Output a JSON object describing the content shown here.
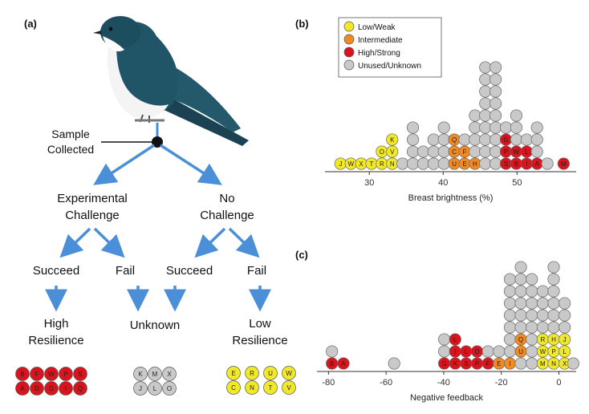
{
  "colors": {
    "low": "#f2e82a",
    "intermediate": "#f08a24",
    "high": "#d9141c",
    "unused": "#c9c9c9",
    "arrow": "#4a8fd8",
    "bird_back": "#1f5566",
    "bird_belly": "#f4f4f4"
  },
  "panel_a": {
    "label": "(a)",
    "sample_label_1": "Sample",
    "sample_label_2": "Collected",
    "experimental_1": "Experimental",
    "experimental_2": "Challenge",
    "no_challenge_1": "No",
    "no_challenge_2": "Challenge",
    "succeed_left": "Succeed",
    "fail_left": "Fail",
    "succeed_right": "Succeed",
    "fail_right": "Fail",
    "high_1": "High",
    "high_2": "Resilience",
    "unknown": "Unknown",
    "low_1": "Low",
    "low_2": "Resilience",
    "red_group": [
      [
        "B",
        "F",
        "W",
        "P",
        "S"
      ],
      [
        "A",
        "D",
        "G",
        "I",
        "Q"
      ]
    ],
    "grey_group": [
      [
        "K",
        "M",
        "X"
      ],
      [
        "J",
        "L",
        "O"
      ]
    ],
    "yellow_group": [
      [
        "E",
        "R",
        "U",
        "W"
      ],
      [
        "C",
        "N",
        "T",
        "V"
      ]
    ]
  },
  "legend": {
    "items": [
      {
        "label": "Low/Weak",
        "color_key": "low"
      },
      {
        "label": "Intermediate",
        "color_key": "intermediate"
      },
      {
        "label": "High/Strong",
        "color_key": "high"
      },
      {
        "label": "Unused/Unknown",
        "color_key": "unused"
      }
    ]
  },
  "chart_data": [
    {
      "panel": "(b)",
      "type": "scatter",
      "xlabel": "Breast brightness (%)",
      "xlim": [
        24,
        58
      ],
      "xticks": [
        30,
        40,
        50
      ],
      "ylabel": "",
      "grid": false,
      "note": "dot plot; each circle is one bird",
      "stacks": [
        {
          "x": 26.1,
          "dots": [
            {
              "c": "low",
              "t": "J"
            }
          ]
        },
        {
          "x": 27.5,
          "dots": [
            {
              "c": "low",
              "t": "W"
            }
          ]
        },
        {
          "x": 28.9,
          "dots": [
            {
              "c": "low",
              "t": "X"
            }
          ]
        },
        {
          "x": 30.3,
          "dots": [
            {
              "c": "low",
              "t": "T"
            }
          ]
        },
        {
          "x": 31.7,
          "dots": [
            {
              "c": "low",
              "t": "R"
            },
            {
              "c": "low",
              "t": "O"
            }
          ]
        },
        {
          "x": 33.1,
          "dots": [
            {
              "c": "low",
              "t": "N"
            },
            {
              "c": "low",
              "t": "V"
            },
            {
              "c": "low",
              "t": "K"
            }
          ]
        },
        {
          "x": 34.5,
          "dots": [
            {
              "c": "unused",
              "t": ""
            }
          ]
        },
        {
          "x": 35.9,
          "dots": [
            {
              "c": "unused",
              "t": ""
            },
            {
              "c": "unused",
              "t": ""
            },
            {
              "c": "unused",
              "t": ""
            },
            {
              "c": "unused",
              "t": ""
            }
          ]
        },
        {
          "x": 37.3,
          "dots": [
            {
              "c": "unused",
              "t": ""
            },
            {
              "c": "unused",
              "t": ""
            }
          ]
        },
        {
          "x": 38.7,
          "dots": [
            {
              "c": "unused",
              "t": ""
            },
            {
              "c": "unused",
              "t": ""
            },
            {
              "c": "unused",
              "t": ""
            }
          ]
        },
        {
          "x": 40.1,
          "dots": [
            {
              "c": "unused",
              "t": ""
            },
            {
              "c": "unused",
              "t": ""
            },
            {
              "c": "unused",
              "t": ""
            },
            {
              "c": "unused",
              "t": ""
            }
          ]
        },
        {
          "x": 41.5,
          "dots": [
            {
              "c": "intermediate",
              "t": "U"
            },
            {
              "c": "intermediate",
              "t": "C"
            },
            {
              "c": "intermediate",
              "t": "Q"
            }
          ]
        },
        {
          "x": 42.9,
          "dots": [
            {
              "c": "intermediate",
              "t": "E"
            },
            {
              "c": "intermediate",
              "t": "F"
            },
            {
              "c": "unused",
              "t": ""
            }
          ]
        },
        {
          "x": 44.3,
          "dots": [
            {
              "c": "intermediate",
              "t": "H"
            },
            {
              "c": "unused",
              "t": ""
            },
            {
              "c": "unused",
              "t": ""
            },
            {
              "c": "unused",
              "t": ""
            },
            {
              "c": "unused",
              "t": ""
            }
          ]
        },
        {
          "x": 45.7,
          "dots": [
            {
              "c": "unused",
              "t": ""
            },
            {
              "c": "unused",
              "t": ""
            },
            {
              "c": "unused",
              "t": ""
            },
            {
              "c": "unused",
              "t": ""
            },
            {
              "c": "unused",
              "t": ""
            },
            {
              "c": "unused",
              "t": ""
            },
            {
              "c": "unused",
              "t": ""
            },
            {
              "c": "unused",
              "t": ""
            },
            {
              "c": "unused",
              "t": ""
            }
          ]
        },
        {
          "x": 47.1,
          "dots": [
            {
              "c": "unused",
              "t": ""
            },
            {
              "c": "unused",
              "t": ""
            },
            {
              "c": "unused",
              "t": ""
            },
            {
              "c": "unused",
              "t": ""
            },
            {
              "c": "unused",
              "t": ""
            },
            {
              "c": "unused",
              "t": ""
            },
            {
              "c": "unused",
              "t": ""
            },
            {
              "c": "unused",
              "t": ""
            },
            {
              "c": "unused",
              "t": ""
            }
          ]
        },
        {
          "x": 48.5,
          "dots": [
            {
              "c": "high",
              "t": "S"
            },
            {
              "c": "high",
              "t": "P"
            },
            {
              "c": "high",
              "t": "G"
            },
            {
              "c": "unused",
              "t": ""
            }
          ]
        },
        {
          "x": 49.9,
          "dots": [
            {
              "c": "high",
              "t": "B"
            },
            {
              "c": "high",
              "t": "W"
            },
            {
              "c": "unused",
              "t": ""
            },
            {
              "c": "unused",
              "t": ""
            },
            {
              "c": "unused",
              "t": ""
            }
          ]
        },
        {
          "x": 51.3,
          "dots": [
            {
              "c": "high",
              "t": "I"
            },
            {
              "c": "high",
              "t": "L"
            },
            {
              "c": "unused",
              "t": ""
            }
          ]
        },
        {
          "x": 52.7,
          "dots": [
            {
              "c": "high",
              "t": "A"
            },
            {
              "c": "unused",
              "t": ""
            },
            {
              "c": "unused",
              "t": ""
            },
            {
              "c": "unused",
              "t": ""
            }
          ]
        },
        {
          "x": 54.1,
          "dots": [
            {
              "c": "unused",
              "t": ""
            }
          ]
        },
        {
          "x": 56.3,
          "dots": [
            {
              "c": "high",
              "t": "M"
            }
          ]
        }
      ]
    },
    {
      "panel": "(c)",
      "type": "scatter",
      "xlabel": "Negative feedback",
      "xlim": [
        -84,
        6
      ],
      "xticks": [
        -80,
        -60,
        -40,
        -20,
        0
      ],
      "ylabel": "",
      "grid": false,
      "note": "dot plot; each circle is one bird",
      "stacks": [
        {
          "x": -78.8,
          "dots": [
            {
              "c": "high",
              "t": "B"
            },
            {
              "c": "unused",
              "t": ""
            }
          ]
        },
        {
          "x": -74.8,
          "dots": [
            {
              "c": "high",
              "t": "A"
            }
          ]
        },
        {
          "x": -57.2,
          "dots": [
            {
              "c": "unused",
              "t": ""
            }
          ]
        },
        {
          "x": -39.8,
          "dots": [
            {
              "c": "high",
              "t": "G"
            },
            {
              "c": "unused",
              "t": ""
            },
            {
              "c": "unused",
              "t": ""
            }
          ]
        },
        {
          "x": -36.0,
          "dots": [
            {
              "c": "high",
              "t": "K"
            },
            {
              "c": "high",
              "t": "I"
            },
            {
              "c": "high",
              "t": "L"
            }
          ]
        },
        {
          "x": -32.2,
          "dots": [
            {
              "c": "high",
              "t": "S"
            },
            {
              "c": "high",
              "t": "L"
            }
          ]
        },
        {
          "x": -28.4,
          "dots": [
            {
              "c": "high",
              "t": "P"
            },
            {
              "c": "high",
              "t": "D"
            }
          ]
        },
        {
          "x": -24.6,
          "dots": [
            {
              "c": "high",
              "t": "F"
            },
            {
              "c": "unused",
              "t": ""
            }
          ]
        },
        {
          "x": -20.8,
          "dots": [
            {
              "c": "intermediate",
              "t": "E"
            },
            {
              "c": "unused",
              "t": ""
            }
          ]
        },
        {
          "x": -17.0,
          "dots": [
            {
              "c": "intermediate",
              "t": "I"
            },
            {
              "c": "unused",
              "t": ""
            },
            {
              "c": "unused",
              "t": ""
            },
            {
              "c": "unused",
              "t": ""
            },
            {
              "c": "unused",
              "t": ""
            },
            {
              "c": "unused",
              "t": ""
            },
            {
              "c": "unused",
              "t": ""
            },
            {
              "c": "unused",
              "t": ""
            }
          ]
        },
        {
          "x": -13.2,
          "dots": [
            {
              "c": "unused",
              "t": ""
            },
            {
              "c": "intermediate",
              "t": "U"
            },
            {
              "c": "intermediate",
              "t": "Q"
            },
            {
              "c": "unused",
              "t": ""
            },
            {
              "c": "unused",
              "t": ""
            },
            {
              "c": "unused",
              "t": ""
            },
            {
              "c": "unused",
              "t": ""
            },
            {
              "c": "unused",
              "t": ""
            },
            {
              "c": "unused",
              "t": ""
            }
          ]
        },
        {
          "x": -9.4,
          "dots": [
            {
              "c": "unused",
              "t": ""
            },
            {
              "c": "unused",
              "t": ""
            },
            {
              "c": "unused",
              "t": ""
            },
            {
              "c": "unused",
              "t": ""
            },
            {
              "c": "unused",
              "t": ""
            },
            {
              "c": "unused",
              "t": ""
            },
            {
              "c": "unused",
              "t": ""
            },
            {
              "c": "unused",
              "t": ""
            }
          ]
        },
        {
          "x": -5.6,
          "dots": [
            {
              "c": "low",
              "t": "M"
            },
            {
              "c": "low",
              "t": "W"
            },
            {
              "c": "low",
              "t": "R"
            },
            {
              "c": "unused",
              "t": ""
            },
            {
              "c": "unused",
              "t": ""
            },
            {
              "c": "unused",
              "t": ""
            },
            {
              "c": "unused",
              "t": ""
            }
          ]
        },
        {
          "x": -1.8,
          "dots": [
            {
              "c": "low",
              "t": "N"
            },
            {
              "c": "low",
              "t": "P"
            },
            {
              "c": "low",
              "t": "H"
            },
            {
              "c": "unused",
              "t": ""
            },
            {
              "c": "unused",
              "t": ""
            },
            {
              "c": "unused",
              "t": ""
            },
            {
              "c": "unused",
              "t": ""
            },
            {
              "c": "unused",
              "t": ""
            },
            {
              "c": "unused",
              "t": ""
            }
          ]
        },
        {
          "x": 2.0,
          "dots": [
            {
              "c": "low",
              "t": "X"
            },
            {
              "c": "low",
              "t": "L"
            },
            {
              "c": "low",
              "t": "J"
            },
            {
              "c": "unused",
              "t": ""
            },
            {
              "c": "unused",
              "t": ""
            },
            {
              "c": "unused",
              "t": ""
            }
          ]
        },
        {
          "x": 5.0,
          "dots": [
            {
              "c": "unused",
              "t": ""
            }
          ]
        }
      ]
    }
  ]
}
